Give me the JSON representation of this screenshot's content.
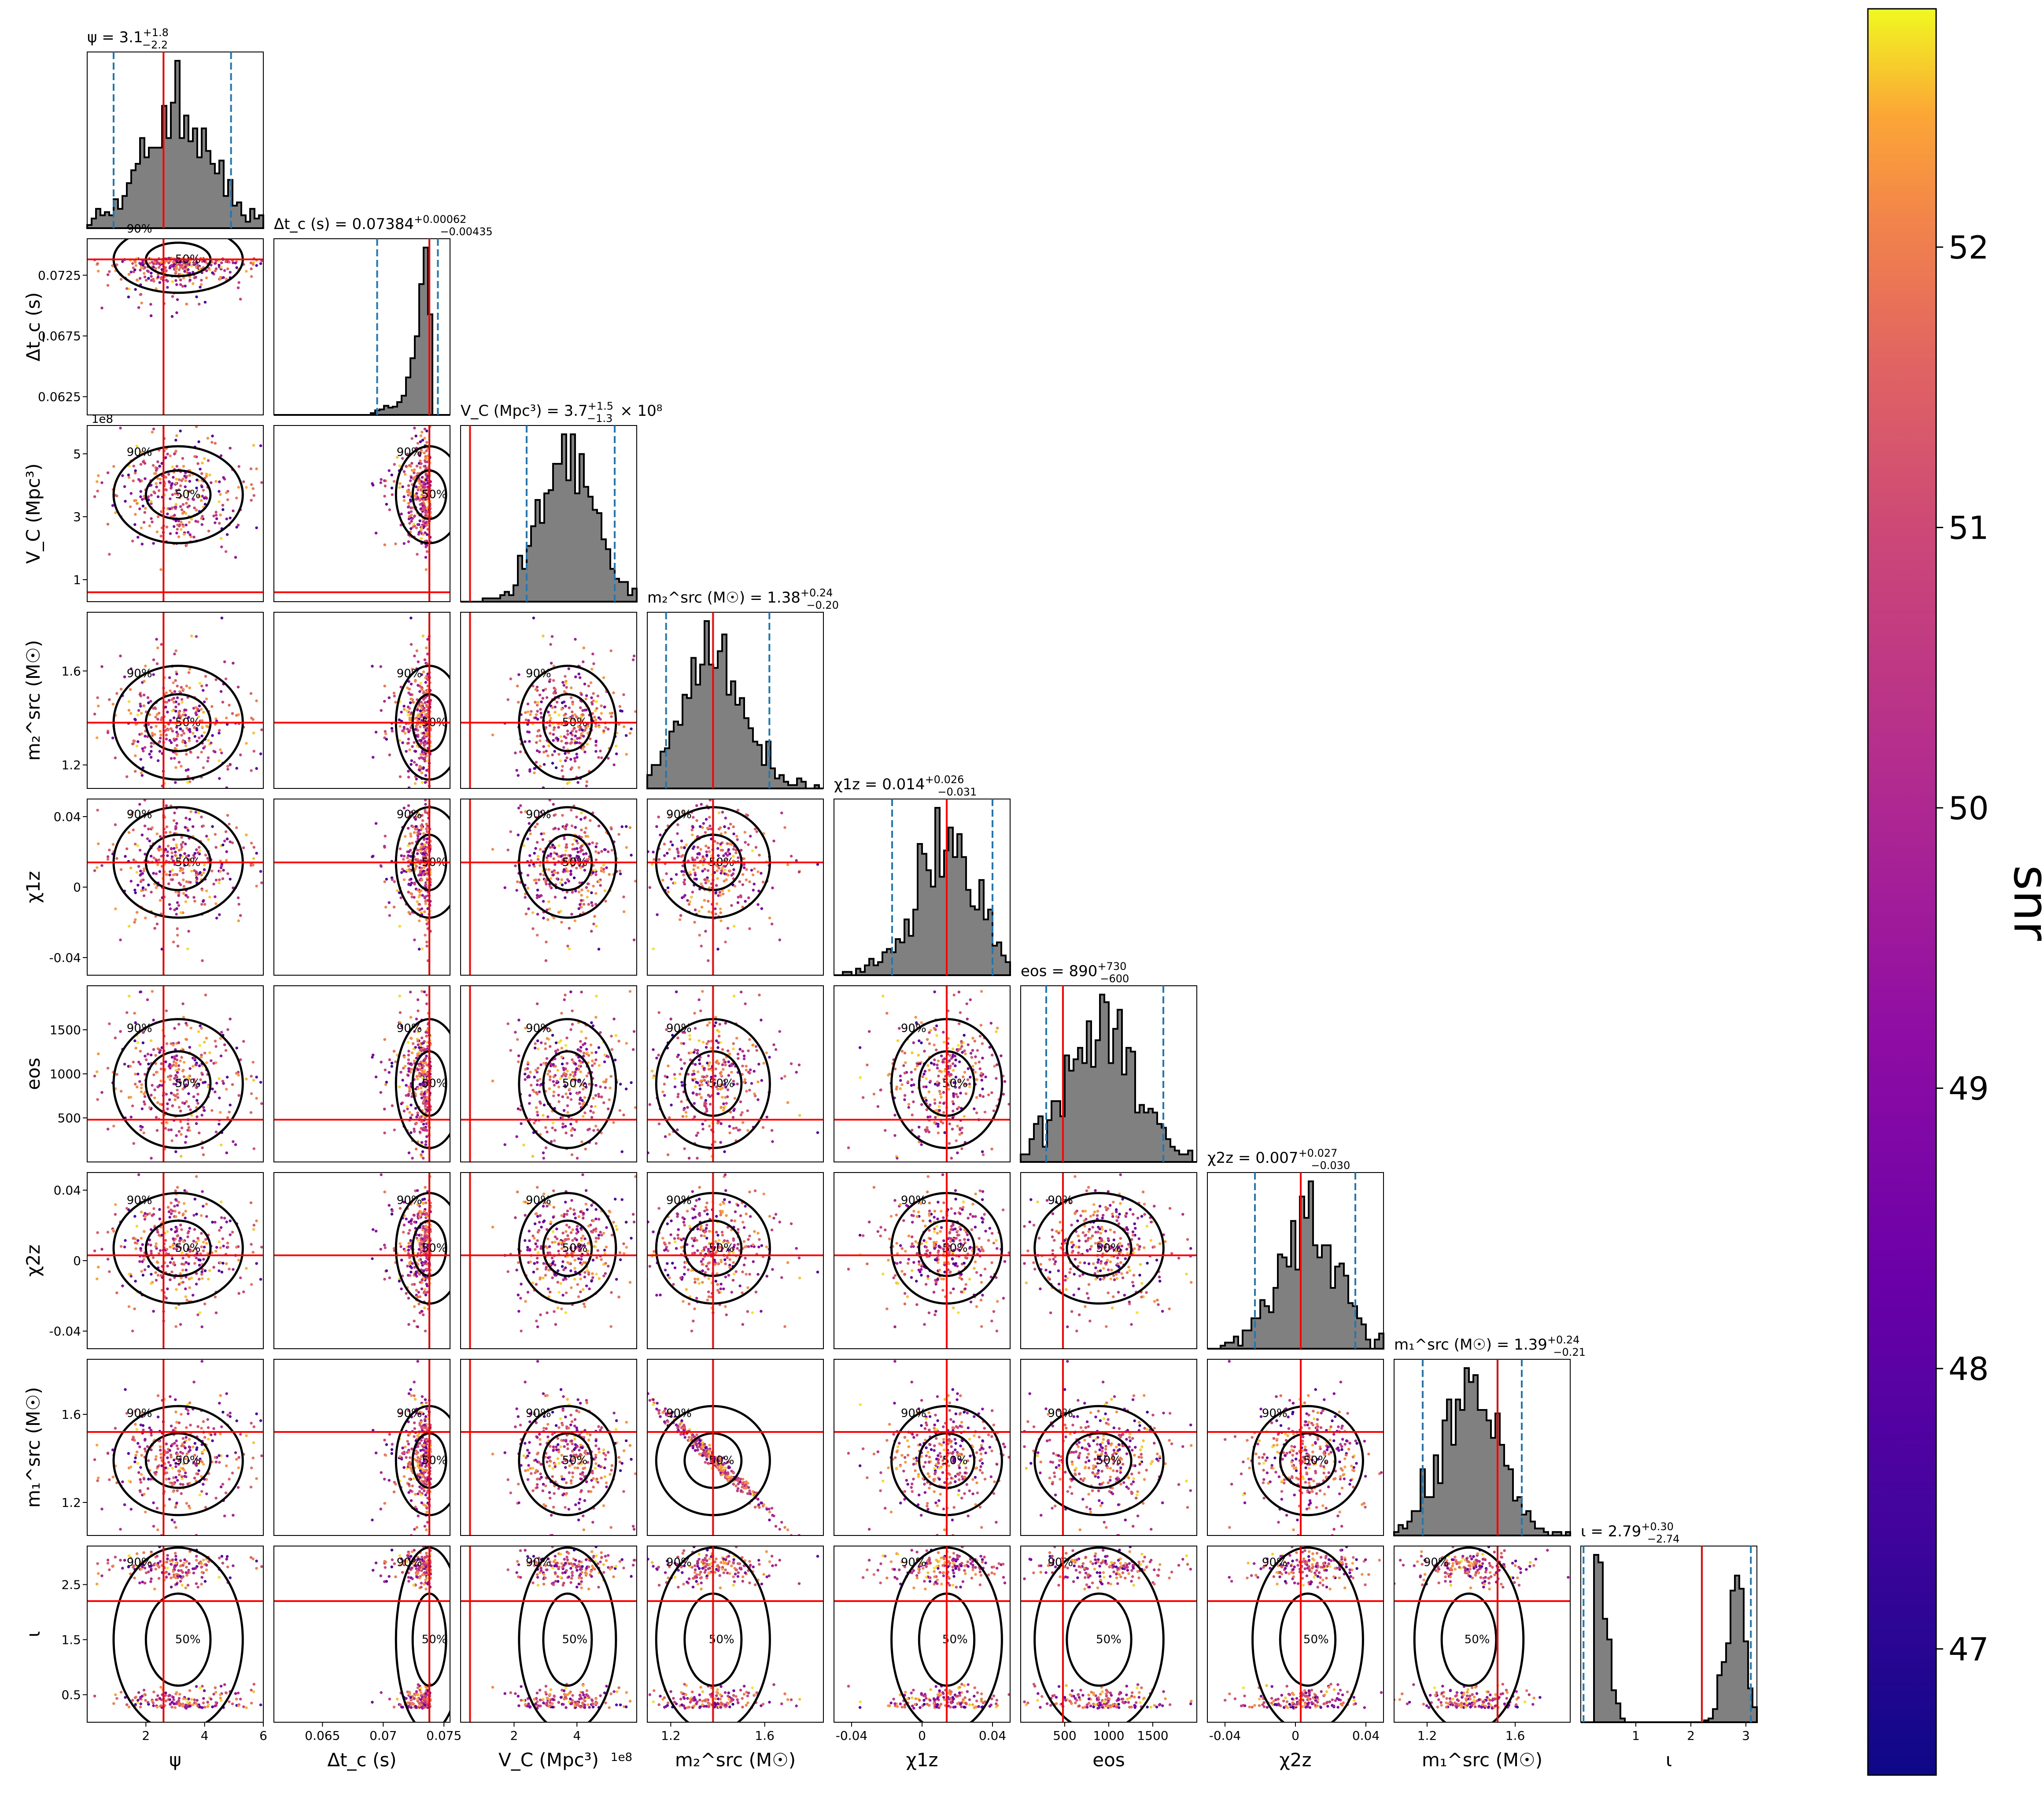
{
  "chart_data": {
    "type": "scatter",
    "subtype": "corner-plot",
    "parameters": [
      {
        "key": "psi",
        "label": "ψ",
        "title_value": "ψ = 3.1",
        "plus": "+1.8",
        "minus": "−2.2",
        "range": [
          0,
          6
        ],
        "ticks": [
          2,
          4,
          6
        ],
        "ci": [
          0.9,
          4.9
        ],
        "truth": 2.6,
        "median": 3.1
      },
      {
        "key": "dtc",
        "label": "Δt_c (s)",
        "title_value": "Δt_c (s) = 0.07384",
        "plus": "+0.00062",
        "minus": "−0.00435",
        "range": [
          0.061,
          0.0755
        ],
        "ticks": [
          0.0625,
          0.0675,
          0.0725
        ],
        "xticks": [
          0.065,
          0.07,
          0.075
        ],
        "ci": [
          0.0695,
          0.0745
        ],
        "truth": 0.0738,
        "median": 0.0738
      },
      {
        "key": "vc",
        "label": "V_C (Mpc³)",
        "title_value": "V_C (Mpc³) = 3.7",
        "plus": "+1.5",
        "minus": "−1.3",
        "suffix": "× 10⁸",
        "range": [
          0.3,
          5.9
        ],
        "ticks": [
          1,
          3,
          5
        ],
        "xticks": [
          2,
          4
        ],
        "ci": [
          2.4,
          5.2
        ],
        "truth": 0.6,
        "median": 3.7,
        "sci": "1e8"
      },
      {
        "key": "m2",
        "label": "m₂^src (M☉)",
        "title_value": "m₂^src (M☉) = 1.38",
        "plus": "+0.24",
        "minus": "−0.20",
        "range": [
          1.1,
          1.85
        ],
        "ticks": [
          1.2,
          1.6
        ],
        "ci": [
          1.18,
          1.62
        ],
        "truth": 1.38,
        "median": 1.38
      },
      {
        "key": "chi1z",
        "label": "χ1z",
        "title_value": "χ1z = 0.014",
        "plus": "+0.026",
        "minus": "−0.031",
        "range": [
          -0.05,
          0.05
        ],
        "ticks": [
          -0.04,
          0.0,
          0.04
        ],
        "ci": [
          -0.017,
          0.04
        ],
        "truth": 0.014,
        "median": 0.014
      },
      {
        "key": "eos",
        "label": "eos",
        "title_value": "eos = 890",
        "plus": "+730",
        "minus": "−600",
        "range": [
          0,
          2000
        ],
        "ticks": [
          500,
          1000,
          1500
        ],
        "ci": [
          290,
          1620
        ],
        "truth": 480,
        "median": 890
      },
      {
        "key": "chi2z",
        "label": "χ2z",
        "title_value": "χ2z = 0.007",
        "plus": "+0.027",
        "minus": "−0.030",
        "range": [
          -0.05,
          0.05
        ],
        "ticks": [
          -0.04,
          0.0,
          0.04
        ],
        "ci": [
          -0.023,
          0.034
        ],
        "truth": 0.003,
        "median": 0.007
      },
      {
        "key": "m1",
        "label": "m₁^src (M☉)",
        "title_value": "m₁^src (M☉) = 1.39",
        "plus": "+0.24",
        "minus": "−0.21",
        "range": [
          1.05,
          1.85
        ],
        "ticks": [
          1.2,
          1.6
        ],
        "ci": [
          1.18,
          1.63
        ],
        "truth": 1.52,
        "median": 1.39
      },
      {
        "key": "iota",
        "label": "ι",
        "title_value": "ι = 2.79",
        "plus": "+0.30",
        "minus": "−2.74",
        "range": [
          0,
          3.2
        ],
        "ticks": [
          0.5,
          1.5,
          2.5
        ],
        "xticks": [
          1,
          2,
          3
        ],
        "ci": [
          0.05,
          3.09
        ],
        "truth": 2.2,
        "median": 2.79
      }
    ],
    "contour_labels": [
      "50%",
      "90%"
    ],
    "colorbar": {
      "label": "snr",
      "ticks": [
        47,
        48,
        49,
        50,
        51,
        52
      ],
      "range": [
        46.55,
        52.85
      ],
      "colormap": "plasma"
    },
    "colors": {
      "hist_fill": "#808080",
      "truth": "#ff0000",
      "ci": "#1f77b4",
      "contour": "#000000"
    }
  }
}
